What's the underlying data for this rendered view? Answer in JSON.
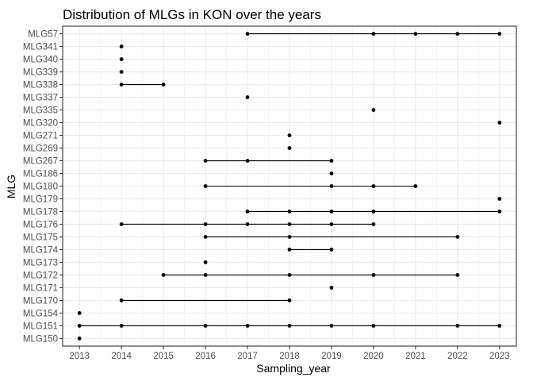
{
  "chart_data": {
    "type": "scatter",
    "title": "Distribution of MLGs in KON over the years",
    "xlabel": "Sampling_year",
    "ylabel": "MLG",
    "xlim": [
      2012.6,
      2023.4
    ],
    "x_ticks": [
      2013,
      2014,
      2015,
      2016,
      2017,
      2018,
      2019,
      2020,
      2021,
      2022,
      2023
    ],
    "categories": [
      "MLG150",
      "MLG151",
      "MLG154",
      "MLG170",
      "MLG171",
      "MLG172",
      "MLG173",
      "MLG174",
      "MLG175",
      "MLG176",
      "MLG178",
      "MLG179",
      "MLG180",
      "MLG186",
      "MLG267",
      "MLG269",
      "MLG271",
      "MLG320",
      "MLG335",
      "MLG337",
      "MLG338",
      "MLG339",
      "MLG340",
      "MLG341",
      "MLG57"
    ],
    "points": [
      {
        "mlg": "MLG150",
        "years": [
          2013
        ]
      },
      {
        "mlg": "MLG151",
        "years": [
          2013,
          2014,
          2016,
          2017,
          2018,
          2019,
          2020,
          2022,
          2023
        ]
      },
      {
        "mlg": "MLG154",
        "years": [
          2013
        ]
      },
      {
        "mlg": "MLG170",
        "years": [
          2014,
          2018
        ]
      },
      {
        "mlg": "MLG171",
        "years": [
          2019
        ]
      },
      {
        "mlg": "MLG172",
        "years": [
          2015,
          2016,
          2018,
          2020,
          2022
        ]
      },
      {
        "mlg": "MLG173",
        "years": [
          2016
        ]
      },
      {
        "mlg": "MLG174",
        "years": [
          2018,
          2019
        ]
      },
      {
        "mlg": "MLG175",
        "years": [
          2016,
          2018,
          2022
        ]
      },
      {
        "mlg": "MLG176",
        "years": [
          2014,
          2016,
          2017,
          2018,
          2019,
          2020
        ]
      },
      {
        "mlg": "MLG178",
        "years": [
          2017,
          2018,
          2019,
          2020,
          2023
        ]
      },
      {
        "mlg": "MLG179",
        "years": [
          2023
        ]
      },
      {
        "mlg": "MLG180",
        "years": [
          2016,
          2019,
          2020,
          2021
        ]
      },
      {
        "mlg": "MLG186",
        "years": [
          2019
        ]
      },
      {
        "mlg": "MLG267",
        "years": [
          2016,
          2017,
          2019
        ]
      },
      {
        "mlg": "MLG269",
        "years": [
          2018
        ]
      },
      {
        "mlg": "MLG271",
        "years": [
          2018
        ]
      },
      {
        "mlg": "MLG320",
        "years": [
          2023
        ]
      },
      {
        "mlg": "MLG335",
        "years": [
          2020
        ]
      },
      {
        "mlg": "MLG337",
        "years": [
          2017
        ]
      },
      {
        "mlg": "MLG338",
        "years": [
          2014,
          2015
        ]
      },
      {
        "mlg": "MLG339",
        "years": [
          2014
        ]
      },
      {
        "mlg": "MLG340",
        "years": [
          2014
        ]
      },
      {
        "mlg": "MLG341",
        "years": [
          2014
        ]
      },
      {
        "mlg": "MLG57",
        "years": [
          2017,
          2020,
          2021,
          2022,
          2023
        ]
      }
    ],
    "grid": true,
    "legend": "none",
    "colors": {
      "point": "#000000",
      "line": "#000000",
      "grid": "#ebebeb",
      "panel_border": "#333333"
    }
  }
}
